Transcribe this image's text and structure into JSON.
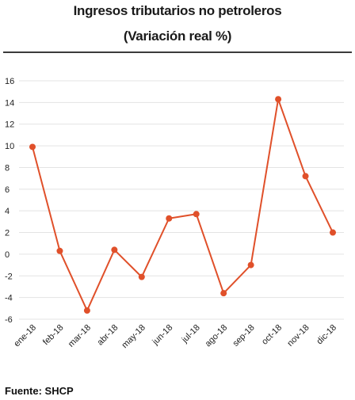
{
  "chart_data": {
    "type": "line",
    "title": "Ingresos tributarios no petroleros",
    "subtitle": "(Variación real %)",
    "xlabel": "",
    "ylabel": "",
    "categories": [
      "ene-18",
      "feb-18",
      "mar-18",
      "abr-18",
      "may-18",
      "jun-18",
      "jul-18",
      "ago-18",
      "sep-18",
      "oct-18",
      "nov-18",
      "dic-18"
    ],
    "series": [
      {
        "values": [
          9.9,
          0.3,
          -5.2,
          0.4,
          -2.1,
          3.3,
          3.7,
          -3.6,
          -1.0,
          14.3,
          7.2,
          2.0
        ]
      }
    ],
    "yticks": [
      16,
      14,
      12,
      10,
      8,
      6,
      4,
      2,
      0,
      -2,
      -4,
      -6
    ],
    "ylim": [
      -6,
      16
    ],
    "grid": true,
    "legend": "none",
    "line_color": "#e0502a",
    "grid_color": "#e3e3e3"
  },
  "footer": {
    "source": "Fuente: SHCP"
  }
}
